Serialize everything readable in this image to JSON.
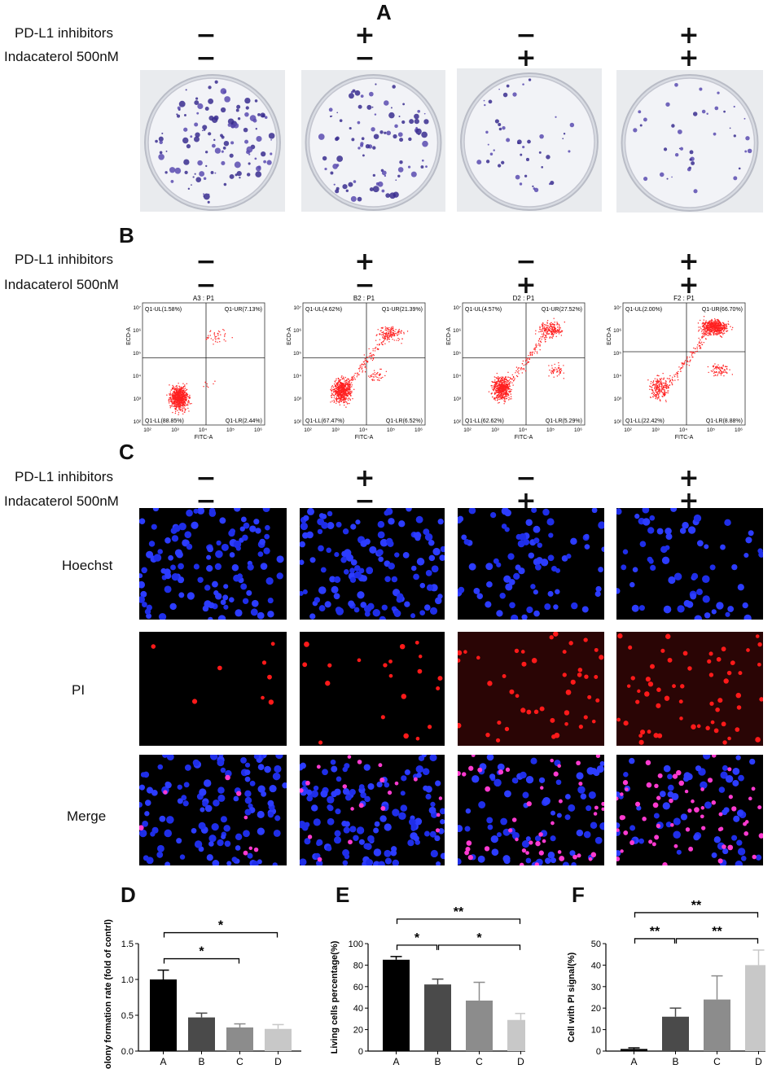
{
  "panels": {
    "A": {
      "letter": "A"
    },
    "B": {
      "letter": "B"
    },
    "C": {
      "letter": "C"
    },
    "D": {
      "letter": "D"
    },
    "E": {
      "letter": "E"
    },
    "F": {
      "letter": "F"
    }
  },
  "conditions": {
    "row1_label": "PD-L1 inhibitors",
    "row2_label": "Indacaterol 500nM",
    "row1_signs": [
      "−",
      "+",
      "−",
      "+"
    ],
    "row2_signs": [
      "−",
      "−",
      "+",
      "+"
    ]
  },
  "microscopy_rows": [
    "Hoechst",
    "PI",
    "Merge"
  ],
  "flow": {
    "xlabel": "FITC-A",
    "ylabel": "ECD-A",
    "xticks": [
      "10²",
      "10³",
      "10⁴",
      "10⁵",
      "10⁶"
    ],
    "yticks": [
      "10²",
      "10³",
      "10⁴",
      "10⁵",
      "10⁶",
      "10⁷"
    ],
    "plots": [
      {
        "title": "A3 : P1",
        "ul": "Q1-UL(1.58%)",
        "ur": "Q1-UR(7.13%)",
        "ll": "Q1-LL(88.85%)",
        "lr": "Q1-LR(2.44%)"
      },
      {
        "title": "B2 : P1",
        "ul": "Q1-UL(4.62%)",
        "ur": "Q1-UR(21.39%)",
        "ll": "Q1-LL(67.47%)",
        "lr": "Q1-LR(6.52%)"
      },
      {
        "title": "D2 : P1",
        "ul": "Q1-UL(4.57%)",
        "ur": "Q1-UR(27.52%)",
        "ll": "Q1-LL(62.62%)",
        "lr": "Q1-LR(5.29%)"
      },
      {
        "title": "F2 : P1",
        "ul": "Q1-UL(2.00%)",
        "ur": "Q1-UR(66.70%)",
        "ll": "Q1-LL(22.42%)",
        "lr": "Q1-LR(8.88%)"
      }
    ]
  },
  "chart_data": [
    {
      "type": "bar",
      "panel": "D",
      "categories": [
        "A",
        "B",
        "C",
        "D"
      ],
      "values": [
        1.0,
        0.47,
        0.33,
        0.31
      ],
      "errors": [
        0.13,
        0.06,
        0.05,
        0.06
      ],
      "colors": [
        "#000000",
        "#4a4a4a",
        "#8c8c8c",
        "#c8c8c8"
      ],
      "ylabel": "Colony formation rate (fold of contrl)",
      "ylim": [
        0,
        1.5
      ],
      "yticks": [
        "0.0",
        "0.5",
        "1.0",
        "1.5"
      ],
      "brackets": [
        {
          "from": "A",
          "to": "C",
          "label": "*",
          "level": 1
        },
        {
          "from": "A",
          "to": "D",
          "label": "*",
          "level": 2
        }
      ]
    },
    {
      "type": "bar",
      "panel": "E",
      "categories": [
        "A",
        "B",
        "C",
        "D"
      ],
      "values": [
        85,
        62,
        47,
        29
      ],
      "errors": [
        3,
        5,
        17,
        6
      ],
      "colors": [
        "#000000",
        "#4a4a4a",
        "#8c8c8c",
        "#c8c8c8"
      ],
      "ylabel": "Living cells percentage(%)",
      "ylim": [
        0,
        100
      ],
      "yticks": [
        "0",
        "20",
        "40",
        "60",
        "80",
        "100"
      ],
      "brackets": [
        {
          "from": "A",
          "to": "B",
          "label": "*",
          "level": 1
        },
        {
          "from": "B",
          "to": "D",
          "label": "*",
          "level": 1
        },
        {
          "from": "A",
          "to": "D",
          "label": "**",
          "level": 2
        }
      ]
    },
    {
      "type": "bar",
      "panel": "F",
      "categories": [
        "A",
        "B",
        "C",
        "D"
      ],
      "values": [
        1,
        16,
        24,
        40
      ],
      "errors": [
        0.5,
        4,
        11,
        7
      ],
      "colors": [
        "#000000",
        "#4a4a4a",
        "#8c8c8c",
        "#c8c8c8"
      ],
      "ylabel": "Cell with PI signal(%)",
      "ylim": [
        0,
        50
      ],
      "yticks": [
        "0",
        "10",
        "20",
        "30",
        "40",
        "50"
      ],
      "brackets": [
        {
          "from": "A",
          "to": "B",
          "label": "**",
          "level": 1
        },
        {
          "from": "B",
          "to": "D",
          "label": "**",
          "level": 1
        },
        {
          "from": "A",
          "to": "D",
          "label": "**",
          "level": 2
        }
      ]
    }
  ]
}
